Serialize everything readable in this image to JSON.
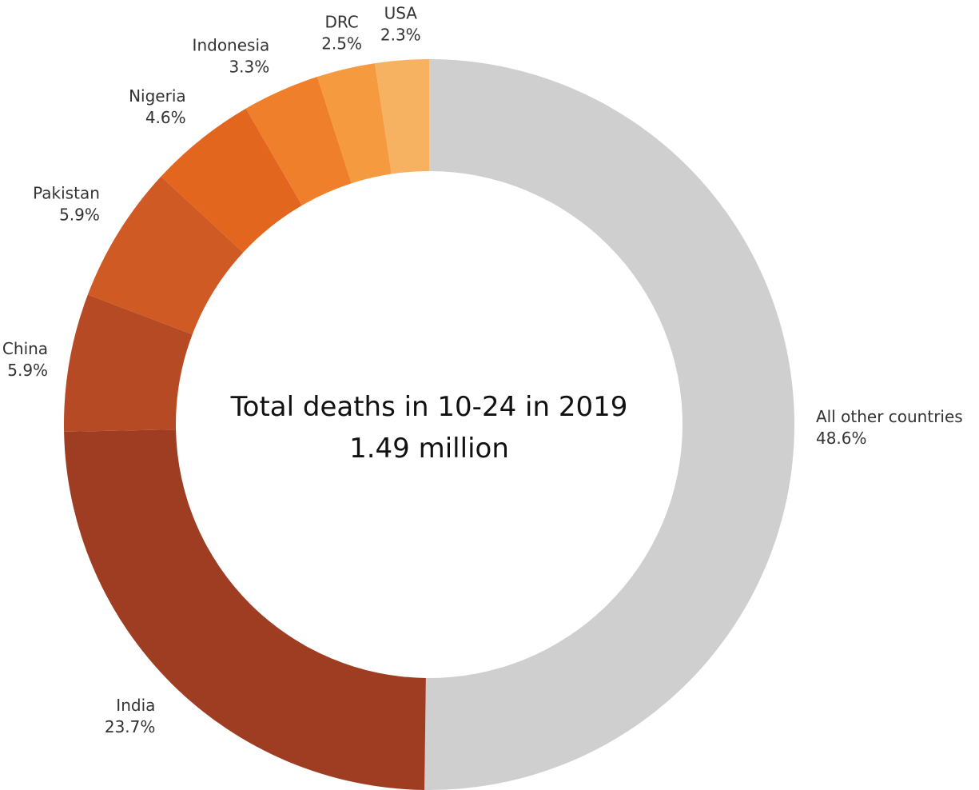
{
  "chart_data": {
    "type": "pie",
    "center_title": "Total deaths in 10-24 in 2019",
    "center_value": "1.49 million",
    "slices": [
      {
        "name": "All other countries",
        "value": 48.6,
        "label": "48.6%",
        "color": "#cfcfcf"
      },
      {
        "name": "India",
        "value": 23.7,
        "label": "23.7%",
        "color": "#9e3d22"
      },
      {
        "name": "China",
        "value": 5.9,
        "label": "5.9%",
        "color": "#b64a24"
      },
      {
        "name": "Pakistan",
        "value": 5.9,
        "label": "5.9%",
        "color": "#d05a23"
      },
      {
        "name": "Nigeria",
        "value": 4.6,
        "label": "4.6%",
        "color": "#e3661f"
      },
      {
        "name": "Indonesia",
        "value": 3.3,
        "label": "3.3%",
        "color": "#ef7f2b"
      },
      {
        "name": "DRC",
        "value": 2.5,
        "label": "2.5%",
        "color": "#f59a3e"
      },
      {
        "name": "USA",
        "value": 2.3,
        "label": "2.3%",
        "color": "#f7b261"
      }
    ]
  }
}
